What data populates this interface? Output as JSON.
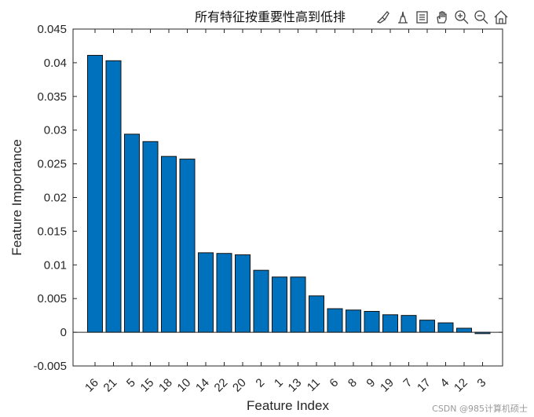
{
  "chart_data": {
    "type": "bar",
    "title": "所有特征按重要性高到低排",
    "xlabel": "Feature Index",
    "ylabel": "Feature Importance",
    "categories": [
      "16",
      "21",
      "5",
      "15",
      "18",
      "10",
      "14",
      "22",
      "20",
      "2",
      "1",
      "13",
      "11",
      "6",
      "8",
      "9",
      "19",
      "7",
      "17",
      "4",
      "12",
      "3"
    ],
    "values": [
      0.0411,
      0.0403,
      0.0294,
      0.0283,
      0.0261,
      0.0257,
      0.0118,
      0.0117,
      0.0115,
      0.0092,
      0.0082,
      0.0082,
      0.0054,
      0.0035,
      0.0033,
      0.0031,
      0.0026,
      0.0025,
      0.0018,
      0.0014,
      0.0006,
      -0.0002
    ],
    "ylim": [
      -0.005,
      0.045
    ],
    "yticks": [
      -0.005,
      0,
      0.005,
      0.01,
      0.015,
      0.02,
      0.025,
      0.03,
      0.035,
      0.04,
      0.045
    ],
    "ytick_labels": [
      "-0.005",
      "0",
      "0.005",
      "0.01",
      "0.015",
      "0.02",
      "0.025",
      "0.03",
      "0.035",
      "0.04",
      "0.045"
    ],
    "bar_color": "#0072BD",
    "grid": false
  },
  "toolbar": {
    "icons": [
      "brush-icon",
      "data-tip-icon",
      "legend-icon",
      "pan-icon",
      "zoom-in-icon",
      "zoom-out-icon",
      "home-icon"
    ]
  },
  "watermark": "CSDN @985计算机硕士"
}
